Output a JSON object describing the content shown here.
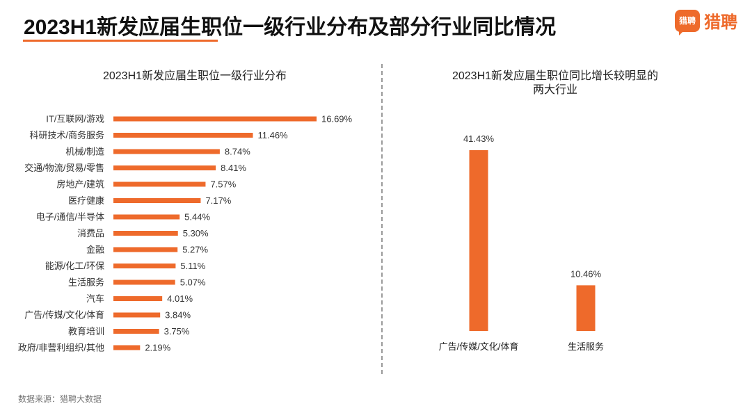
{
  "header": {
    "title": "2023H1新发应届生职位一级行业分布及部分行业同比情况",
    "brand_logo_text": "猎聘",
    "brand_name": "猎聘"
  },
  "footer": {
    "source": "数据来源：猎聘大数据"
  },
  "colors": {
    "accent": "#ee6a2b",
    "bar": "#ee6a2b",
    "divider": "#9a9a9a"
  },
  "chart_data": [
    {
      "type": "bar",
      "orientation": "horizontal",
      "title": "2023H1新发应届生职位一级行业分布",
      "categories": [
        "IT/互联网/游戏",
        "科研技术/商务服务",
        "机械/制造",
        "交通/物流/贸易/零售",
        "房地产/建筑",
        "医疗健康",
        "电子/通信/半导体",
        "消费品",
        "金融",
        "能源/化工/环保",
        "生活服务",
        "汽车",
        "广告/传媒/文化/体育",
        "教育培训",
        "政府/非营利组织/其他"
      ],
      "values": [
        16.69,
        11.46,
        8.74,
        8.41,
        7.57,
        7.17,
        5.44,
        5.3,
        5.27,
        5.11,
        5.07,
        4.01,
        3.84,
        3.75,
        2.19
      ],
      "labels": [
        "16.69%",
        "11.46%",
        "8.74%",
        "8.41%",
        "7.57%",
        "7.17%",
        "5.44%",
        "5.30%",
        "5.27%",
        "5.11%",
        "5.07%",
        "4.01%",
        "3.84%",
        "3.75%",
        "2.19%"
      ],
      "unit": "%",
      "grid": false
    },
    {
      "type": "bar",
      "orientation": "vertical",
      "title": "2023H1新发应届生职位同比增长较明显的两大行业",
      "title_lines": [
        "2023H1新发应届生职位同比增长较明显的",
        "两大行业"
      ],
      "categories": [
        "广告/传媒/文化/体育",
        "生活服务"
      ],
      "values": [
        41.43,
        10.46
      ],
      "labels": [
        "41.43%",
        "10.46%"
      ],
      "unit": "%",
      "grid": false
    }
  ]
}
